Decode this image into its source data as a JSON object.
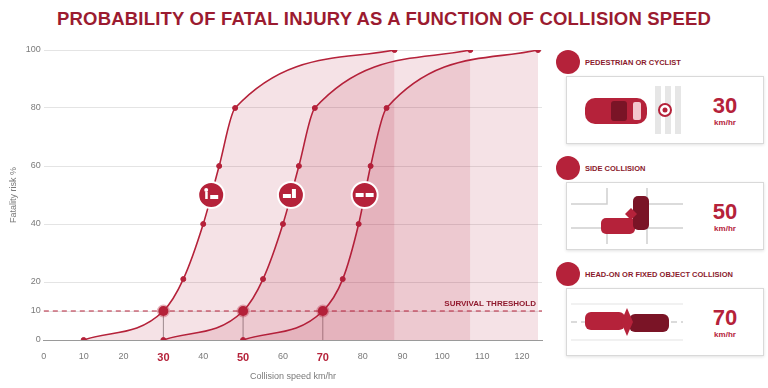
{
  "chart_data": {
    "type": "line",
    "title": "PROBABILITY OF FATAL INJURY AS A FUNCTION OF COLLISION SPEED",
    "x_label": "Collision speed km/hr",
    "y_label": "Fatality risk %",
    "xlim": [
      0,
      125
    ],
    "xticks": [
      0,
      10,
      20,
      30,
      40,
      50,
      60,
      70,
      80,
      90,
      100,
      110,
      120
    ],
    "ylim": [
      0,
      100
    ],
    "yticks": [
      0,
      10,
      20,
      40,
      60,
      80,
      100
    ],
    "grid": true,
    "threshold": {
      "value": 10,
      "label": "SURVIVAL THRESHOLD"
    },
    "series": [
      {
        "name": "PEDESTRIAN OR CYCLIST",
        "color": "#b5223a",
        "marker": "circle",
        "x": [
          10,
          30,
          35,
          40,
          44,
          48,
          88
        ],
        "values": [
          0,
          10,
          21,
          40,
          60,
          80,
          100
        ],
        "speed_limit": 30,
        "speed_unit": "km/hr"
      },
      {
        "name": "SIDE COLLISION",
        "color": "#b5223a",
        "marker": "circle",
        "x": [
          30,
          50,
          55,
          60,
          64,
          68,
          107
        ],
        "values": [
          0,
          10,
          21,
          40,
          60,
          80,
          100
        ],
        "speed_limit": 50,
        "speed_unit": "km/hr"
      },
      {
        "name": "HEAD-ON OR FIXED OBJECT COLLISION",
        "color": "#b5223a",
        "marker": "circle",
        "x": [
          50,
          70,
          75,
          79,
          82,
          86,
          124
        ],
        "values": [
          0,
          10,
          21,
          40,
          60,
          80,
          100
        ],
        "speed_limit": 70,
        "speed_unit": "km/hr"
      }
    ]
  }
}
